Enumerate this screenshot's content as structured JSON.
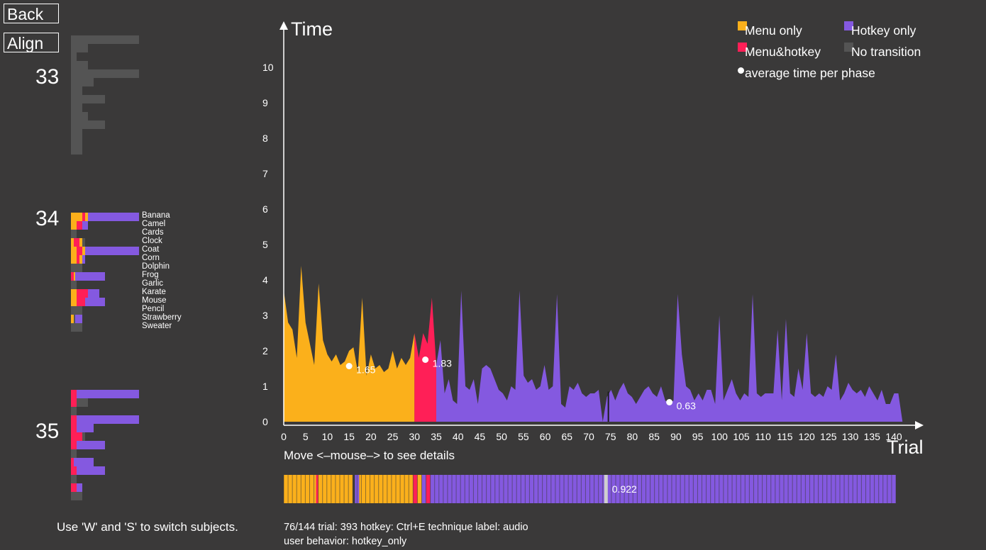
{
  "buttons": {
    "back": "Back",
    "align": "Align"
  },
  "colors": {
    "menu_only": "#fbb01b",
    "menu_hotkey": "#ff1f57",
    "hotkey_only": "#8459e0",
    "no_transition": "#545454",
    "background": "#3a3939"
  },
  "subjects": [
    {
      "id": "33",
      "rows": [
        {
          "segs": [
            [
              "no_transition",
              96
            ]
          ]
        },
        {
          "segs": [
            [
              "no_transition",
              24
            ]
          ]
        },
        {
          "segs": [
            [
              "no_transition",
              8
            ]
          ]
        },
        {
          "segs": [
            [
              "no_transition",
              24
            ]
          ]
        },
        {
          "segs": [
            [
              "no_transition",
              96
            ]
          ]
        },
        {
          "segs": [
            [
              "no_transition",
              32
            ]
          ]
        },
        {
          "segs": [
            [
              "no_transition",
              16
            ]
          ]
        },
        {
          "segs": [
            [
              "no_transition",
              48
            ]
          ]
        },
        {
          "segs": [
            [
              "no_transition",
              16
            ]
          ]
        },
        {
          "segs": [
            [
              "no_transition",
              24
            ]
          ]
        },
        {
          "segs": [
            [
              "no_transition",
              48
            ]
          ]
        },
        {
          "segs": [
            [
              "no_transition",
              16
            ]
          ]
        },
        {
          "segs": [
            [
              "no_transition",
              16
            ]
          ]
        },
        {
          "segs": [
            [
              "no_transition",
              16
            ]
          ]
        }
      ]
    },
    {
      "id": "34",
      "rows": [
        {
          "label": "Banana",
          "segs": [
            [
              "menu_only",
              16
            ],
            [
              "menu_hotkey",
              4
            ],
            [
              "menu_only",
              4
            ],
            [
              "hotkey_only",
              72
            ]
          ]
        },
        {
          "label": "Camel",
          "segs": [
            [
              "menu_only",
              8
            ],
            [
              "menu_hotkey",
              8
            ],
            [
              "hotkey_only",
              8
            ]
          ]
        },
        {
          "label": "Cards",
          "segs": [
            [
              "no_transition",
              8
            ]
          ]
        },
        {
          "label": "Clock",
          "segs": [
            [
              "menu_only",
              4
            ],
            [
              "menu_hotkey",
              8
            ],
            [
              "menu_only",
              4
            ],
            [
              "no_transition",
              4
            ]
          ]
        },
        {
          "label": "Coat",
          "segs": [
            [
              "menu_only",
              8
            ],
            [
              "menu_hotkey",
              8
            ],
            [
              "menu_only",
              4
            ],
            [
              "hotkey_only",
              76
            ]
          ]
        },
        {
          "label": "Corn",
          "segs": [
            [
              "menu_only",
              8
            ],
            [
              "menu_hotkey",
              4
            ],
            [
              "menu_only",
              4
            ],
            [
              "hotkey_only",
              4
            ]
          ]
        },
        {
          "label": "Dolphin",
          "segs": [
            [
              "no_transition",
              16
            ]
          ]
        },
        {
          "label": "Frog",
          "segs": [
            [
              "menu_hotkey",
              4
            ],
            [
              "menu_only",
              2
            ],
            [
              "hotkey_only",
              42
            ]
          ]
        },
        {
          "label": "Garlic",
          "segs": [
            [
              "no_transition",
              8
            ]
          ]
        },
        {
          "label": "Karate",
          "segs": [
            [
              "menu_only",
              8
            ],
            [
              "menu_hotkey",
              16
            ],
            [
              "hotkey_only",
              16
            ]
          ]
        },
        {
          "label": "Mouse",
          "segs": [
            [
              "menu_only",
              8
            ],
            [
              "menu_hotkey",
              12
            ],
            [
              "hotkey_only",
              28
            ]
          ]
        },
        {
          "label": "Pencil",
          "segs": [
            [
              "no_transition",
              16
            ]
          ]
        },
        {
          "label": "Strawberry",
          "segs": [
            [
              "menu_only",
              4
            ],
            [
              "no_transition",
              2
            ],
            [
              "hotkey_only",
              10
            ]
          ]
        },
        {
          "label": "Sweater",
          "segs": [
            [
              "no_transition",
              16
            ]
          ]
        }
      ]
    },
    {
      "id": "35",
      "rows": [
        {
          "segs": [
            [
              "menu_hotkey",
              8
            ],
            [
              "hotkey_only",
              88
            ]
          ]
        },
        {
          "segs": [
            [
              "menu_hotkey",
              8
            ],
            [
              "no_transition",
              16
            ]
          ]
        },
        {
          "segs": [
            [
              "no_transition",
              8
            ]
          ]
        },
        {
          "segs": [
            [
              "menu_hotkey",
              8
            ],
            [
              "hotkey_only",
              88
            ]
          ]
        },
        {
          "segs": [
            [
              "menu_hotkey",
              8
            ],
            [
              "hotkey_only",
              24
            ]
          ]
        },
        {
          "segs": [
            [
              "menu_hotkey",
              16
            ],
            [
              "no_transition",
              4
            ]
          ]
        },
        {
          "segs": [
            [
              "menu_hotkey",
              8
            ],
            [
              "hotkey_only",
              40
            ]
          ]
        },
        {
          "segs": [
            [
              "no_transition",
              8
            ]
          ]
        },
        {
          "segs": [
            [
              "menu_hotkey",
              4
            ],
            [
              "hotkey_only",
              28
            ]
          ]
        },
        {
          "segs": [
            [
              "menu_hotkey",
              8
            ],
            [
              "hotkey_only",
              40
            ]
          ]
        },
        {
          "segs": [
            [
              "no_transition",
              8
            ]
          ]
        },
        {
          "segs": [
            [
              "menu_hotkey",
              8
            ],
            [
              "hotkey_only",
              8
            ]
          ]
        },
        {
          "segs": [
            [
              "no_transition",
              16
            ]
          ]
        }
      ]
    }
  ],
  "hint": "Use 'W' and 'S' to switch subjects.",
  "move_hint": "Move <–mouse–> to see details",
  "legend": {
    "menu_only": "Menu only",
    "hotkey_only": "Hotkey only",
    "menu_hotkey": "Menu&hotkey",
    "no_transition": "No transition",
    "average": "average time per phase"
  },
  "status": {
    "line1": "76/144  trial: 393  hotkey: Ctrl+E  technique label: audio",
    "line2": "user behavior: hotkey_only"
  },
  "chart_data": {
    "type": "area",
    "xlabel": "Trial",
    "ylabel": "Time",
    "xlim": [
      0,
      142
    ],
    "ylim": [
      0,
      11
    ],
    "x_ticks": [
      0,
      5,
      10,
      15,
      20,
      25,
      30,
      35,
      40,
      45,
      50,
      55,
      60,
      65,
      70,
      75,
      80,
      85,
      90,
      95,
      100,
      105,
      110,
      115,
      120,
      125,
      130,
      135,
      140
    ],
    "y_ticks": [
      0,
      1,
      2,
      3,
      4,
      5,
      6,
      7,
      8,
      9,
      10
    ],
    "series": [
      {
        "name": "Menu only",
        "color_key": "menu_only",
        "x_range": [
          0,
          30
        ],
        "values": [
          3.7,
          2.8,
          2.6,
          1.8,
          4.4,
          2.8,
          2.2,
          1.6,
          3.9,
          2.3,
          1.9,
          1.7,
          1.9,
          1.6,
          1.7,
          2.0,
          2.1,
          1.4,
          3.5,
          1.3,
          1.9,
          1.5,
          1.6,
          1.4,
          1.5,
          2.0,
          1.5,
          1.8,
          1.6,
          1.8,
          2.5
        ]
      },
      {
        "name": "Menu&hotkey",
        "color_key": "menu_hotkey",
        "x_range": [
          30,
          35
        ],
        "values": [
          2.5,
          1.8,
          2.5,
          2.2,
          3.5,
          1.6
        ]
      },
      {
        "name": "Hotkey only",
        "color_key": "hotkey_only",
        "x_range": [
          35,
          142
        ],
        "values": [
          1.6,
          2.3,
          0.8,
          1.2,
          0.6,
          0.5,
          3.7,
          1.0,
          0.9,
          1.2,
          0.5,
          1.5,
          1.6,
          1.5,
          1.2,
          0.9,
          0.8,
          0.6,
          1.0,
          0.9,
          3.7,
          1.3,
          1.1,
          1.2,
          0.9,
          1.0,
          1.6,
          0.9,
          1.0,
          3.6,
          0.5,
          0.4,
          1.0,
          0.9,
          1.1,
          0.8,
          0.7,
          0.8,
          0.8,
          0.9,
          0.0,
          0.7,
          0.9,
          0.6,
          0.9,
          1.1,
          0.8,
          0.7,
          0.5,
          0.7,
          0.9,
          1.0,
          0.8,
          0.7,
          1.0,
          0.6,
          0.5,
          0.6,
          3.6,
          1.9,
          1.0,
          0.9,
          0.6,
          0.8,
          0.6,
          0.9,
          0.9,
          0.5,
          3.0,
          0.6,
          0.9,
          1.2,
          0.8,
          0.6,
          0.8,
          0.7,
          3.6,
          0.8,
          0.7,
          0.8,
          0.8,
          0.8,
          2.6,
          0.6,
          2.9,
          0.8,
          0.7,
          1.5,
          0.9,
          2.5,
          0.8,
          0.7,
          0.8,
          0.7,
          1.0,
          0.9,
          1.9,
          0.6,
          0.8,
          1.1,
          0.9,
          0.8,
          0.9,
          0.7,
          1.0,
          0.8,
          0.6,
          0.9,
          0.5,
          0.5,
          0.8,
          0.8,
          0.0
        ]
      }
    ],
    "averages": [
      {
        "x": 15,
        "y": 1.57,
        "label": "1.65"
      },
      {
        "x": 32.5,
        "y": 1.75,
        "label": "1.83"
      },
      {
        "x": 88.5,
        "y": 0.55,
        "label": "0.63"
      }
    ],
    "marker_x": 74.5,
    "strip": {
      "value_label": "0.922",
      "segments": [
        [
          "menu_only",
          0,
          8
        ],
        [
          "menu_hotkey",
          7.5,
          8
        ],
        [
          "menu_only",
          8,
          16
        ],
        [
          "hotkey_only",
          16.5,
          17.5
        ],
        [
          "menu_only",
          17.5,
          30
        ],
        [
          "menu_hotkey",
          30,
          31
        ],
        [
          "menu_only",
          31,
          32
        ],
        [
          "hotkey_only",
          32,
          33
        ],
        [
          "menu_hotkey",
          33,
          34
        ],
        [
          "hotkey_only",
          34,
          142
        ]
      ],
      "highlight_x": 74.5
    }
  }
}
